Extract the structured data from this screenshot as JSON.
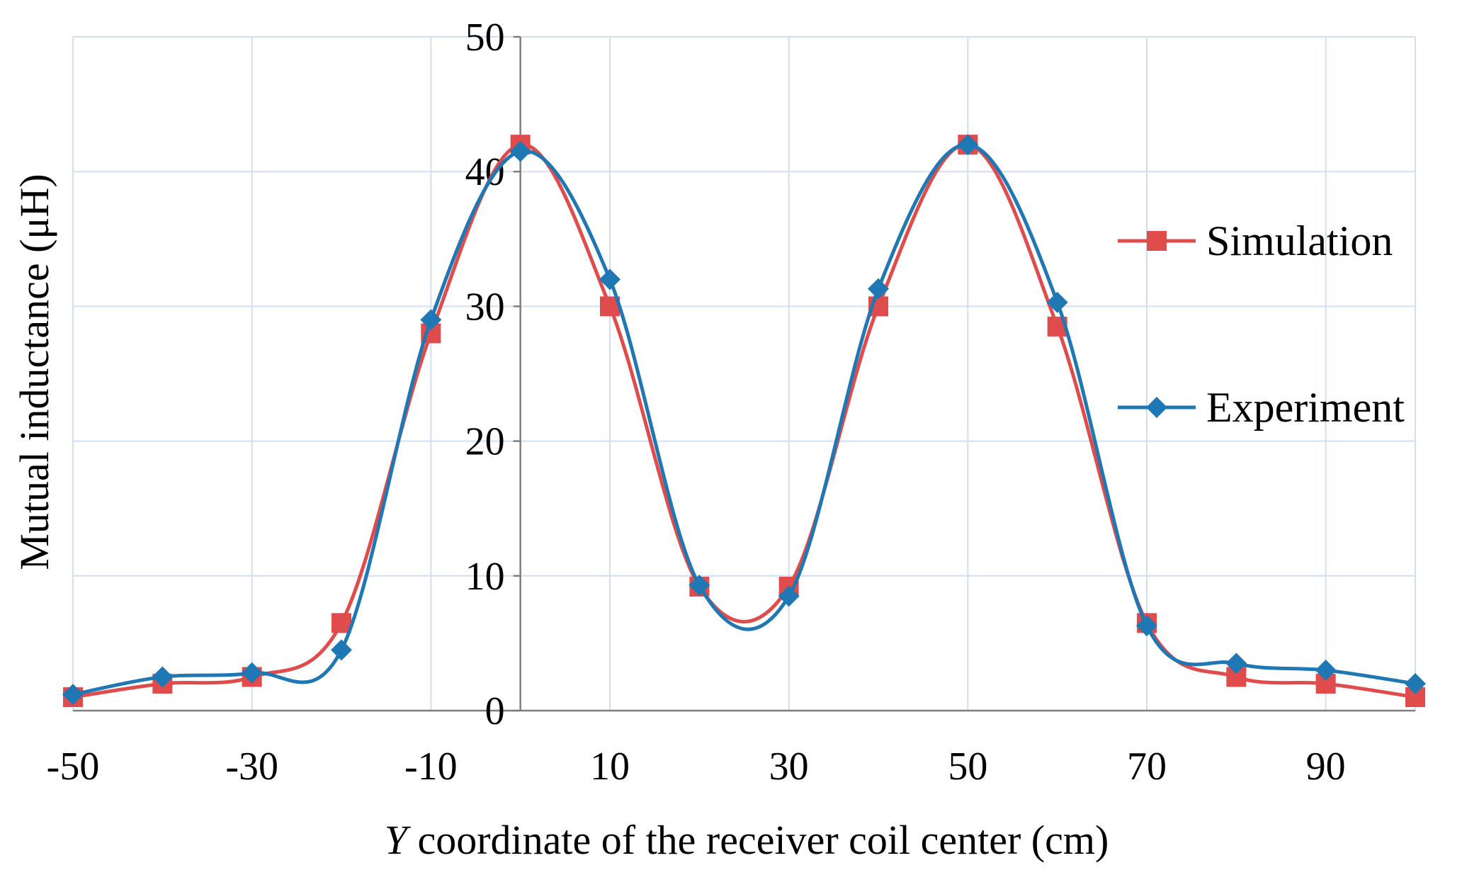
{
  "chart_data": {
    "type": "line",
    "title": "",
    "xlabel_italic": "Y",
    "xlabel_rest": " coordinate of the receiver coil center (cm)",
    "ylabel": "Mutual inductance (μH)",
    "xlim": [
      -50,
      100
    ],
    "ylim": [
      0,
      50
    ],
    "x_ticks": [
      -50,
      -30,
      -10,
      10,
      30,
      50,
      70,
      90
    ],
    "y_ticks": [
      0,
      10,
      20,
      30,
      40,
      50
    ],
    "x_grid": [
      -50,
      -30,
      -10,
      10,
      30,
      50,
      70,
      90,
      100
    ],
    "y_grid": [
      10,
      20,
      30,
      40,
      50
    ],
    "grid": true,
    "legend_position": "right",
    "x": [
      -50,
      -40,
      -30,
      -20,
      -10,
      0,
      10,
      20,
      30,
      40,
      50,
      60,
      70,
      80,
      90,
      100
    ],
    "series": [
      {
        "name": "Simulation",
        "color": "#e04b4b",
        "marker": "square",
        "values": [
          1.0,
          2.0,
          2.5,
          6.5,
          28.0,
          42.0,
          30.0,
          9.2,
          9.2,
          30.0,
          42.0,
          28.5,
          6.5,
          2.5,
          2.0,
          1.0
        ]
      },
      {
        "name": "Experiment",
        "color": "#1f78b4",
        "marker": "diamond",
        "values": [
          1.2,
          2.5,
          2.8,
          4.5,
          29.0,
          41.5,
          32.0,
          9.3,
          8.5,
          31.3,
          42.0,
          30.3,
          6.3,
          3.5,
          3.0,
          2.0
        ]
      }
    ]
  }
}
